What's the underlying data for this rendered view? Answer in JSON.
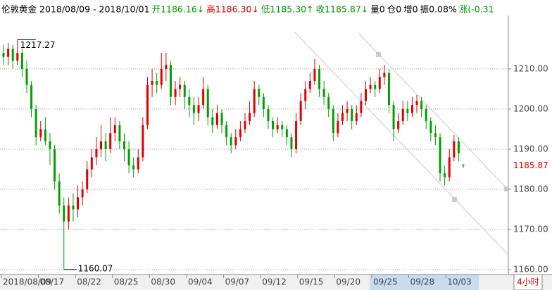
{
  "chart_data": {
    "type": "candlestick",
    "header": [
      {
        "text": "伦敦黄金",
        "color": "#000000"
      },
      {
        "text": "2018/08/09 - 2018/10/01",
        "color": "#000000"
      },
      {
        "text": "开1186.16↓",
        "color": "#009900"
      },
      {
        "text": "高1186.30↓",
        "color": "#dd0000"
      },
      {
        "text": "低1185.30↑",
        "color": "#009900"
      },
      {
        "text": "收1185.87↓",
        "color": "#009900"
      },
      {
        "text": "量0",
        "color": "#000000"
      },
      {
        "text": "仓0",
        "color": "#000000"
      },
      {
        "text": "增0",
        "color": "#000000"
      },
      {
        "text": "振0.08%",
        "color": "#000000"
      },
      {
        "text": "涨(-0.31",
        "color": "#009900"
      }
    ],
    "period": "4小时",
    "x_labels": [
      "2018/08/09",
      "08/17",
      "08/22",
      "08/25",
      "08/30",
      "09/04",
      "09/07",
      "09/12",
      "09/15",
      "09/20",
      "09/25",
      "09/28",
      "10/03"
    ],
    "up_color": "#e00000",
    "down_color": "#00a000",
    "ylim": [
      1158.8,
      1223.3
    ],
    "yticks": [
      {
        "value": 1160,
        "label": "1160.00"
      },
      {
        "value": 1170,
        "label": "1170.00"
      },
      {
        "value": 1180,
        "label": "1180.00"
      },
      {
        "value": 1190,
        "label": "1190.00"
      },
      {
        "value": 1200,
        "label": "1200.00"
      },
      {
        "value": 1210,
        "label": "1210.00"
      }
    ],
    "grid": true,
    "open": [
      1214,
      1213,
      1215,
      1212,
      1214,
      1210,
      1206,
      1200,
      1193,
      1195,
      1192,
      1190,
      1182,
      1176,
      1172,
      1176,
      1175,
      1178,
      1180,
      1185,
      1188,
      1190,
      1192,
      1190,
      1194,
      1196,
      1192,
      1190,
      1186,
      1185,
      1188,
      1196,
      1206,
      1207,
      1206,
      1210,
      1211,
      1203,
      1205,
      1206,
      1203,
      1201,
      1199,
      1201,
      1205,
      1198,
      1196,
      1199,
      1196,
      1193,
      1191,
      1193,
      1195,
      1197,
      1199,
      1205,
      1203,
      1200,
      1197,
      1195,
      1196,
      1195,
      1193,
      1190,
      1197,
      1202,
      1205,
      1207,
      1210,
      1205,
      1203,
      1200,
      1194,
      1197,
      1199,
      1200,
      1197,
      1199,
      1202,
      1205,
      1206,
      1205,
      1208,
      1209,
      1201,
      1195,
      1197,
      1200,
      1199,
      1201,
      1202,
      1200,
      1197,
      1194,
      1193,
      1184,
      1183,
      1188,
      1192,
      1186.16
    ],
    "high": [
      1216,
      1216.5,
      1216,
      1217.27,
      1215,
      1212,
      1207,
      1201,
      1197,
      1198,
      1194,
      1191,
      1184,
      1178,
      1178,
      1179,
      1181,
      1182,
      1187,
      1190,
      1193,
      1196,
      1194,
      1198,
      1198,
      1197,
      1194,
      1192,
      1188,
      1190,
      1198,
      1208,
      1210,
      1209,
      1214,
      1214,
      1212,
      1207,
      1208,
      1207,
      1205,
      1203,
      1203,
      1208,
      1206,
      1200,
      1201,
      1200,
      1197,
      1194,
      1195,
      1197,
      1199,
      1202,
      1207,
      1206,
      1204,
      1201,
      1198,
      1198,
      1197,
      1196,
      1194,
      1199,
      1204,
      1207,
      1209,
      1212.5,
      1211,
      1207,
      1204,
      1201,
      1199,
      1201,
      1202,
      1201,
      1201,
      1204,
      1207,
      1208,
      1207,
      1210,
      1211,
      1210,
      1202,
      1199,
      1202,
      1202,
      1203,
      1203.5,
      1203,
      1201,
      1198,
      1196,
      1194,
      1186,
      1190,
      1193.5,
      1193,
      1186.3
    ],
    "low": [
      1211,
      1211,
      1210,
      1211,
      1208,
      1204,
      1198,
      1191,
      1192,
      1191,
      1186,
      1180,
      1174,
      1160.07,
      1170,
      1172,
      1173,
      1176,
      1179,
      1183,
      1186,
      1188,
      1187,
      1189,
      1192,
      1190,
      1187,
      1184,
      1183,
      1184,
      1187,
      1195,
      1203,
      1204,
      1205,
      1207,
      1201,
      1201,
      1203,
      1200,
      1198,
      1196,
      1197,
      1200,
      1196,
      1194,
      1195,
      1194,
      1191,
      1189,
      1190,
      1192,
      1194,
      1196,
      1198,
      1201,
      1198,
      1195,
      1193,
      1194,
      1193,
      1191,
      1188,
      1189,
      1196,
      1200,
      1204,
      1206,
      1203,
      1201,
      1198,
      1192,
      1193,
      1196,
      1197,
      1195,
      1196,
      1198,
      1201,
      1204,
      1203,
      1204,
      1206,
      1199,
      1192,
      1194,
      1196,
      1197,
      1198,
      1199,
      1198,
      1195,
      1192,
      1191,
      1182,
      1181,
      1182,
      1187,
      1187,
      1185.3
    ],
    "close": [
      1213,
      1215,
      1212,
      1214,
      1210,
      1206,
      1200,
      1193,
      1195,
      1192,
      1190,
      1182,
      1176,
      1172,
      1176,
      1175,
      1178,
      1180,
      1185,
      1188,
      1190,
      1192,
      1190,
      1194,
      1196,
      1192,
      1190,
      1186,
      1185,
      1188,
      1196,
      1206,
      1207,
      1206,
      1210,
      1211,
      1203,
      1205,
      1206,
      1203,
      1201,
      1199,
      1201,
      1205,
      1198,
      1196,
      1199,
      1196,
      1193,
      1191,
      1193,
      1195,
      1197,
      1199,
      1205,
      1203,
      1200,
      1197,
      1195,
      1196,
      1195,
      1193,
      1190,
      1197,
      1202,
      1205,
      1207,
      1210,
      1205,
      1203,
      1200,
      1194,
      1197,
      1199,
      1200,
      1197,
      1199,
      1202,
      1205,
      1206,
      1205,
      1208,
      1209,
      1201,
      1195,
      1197,
      1200,
      1199,
      1201,
      1202,
      1200,
      1197,
      1194,
      1193,
      1184,
      1183,
      1188,
      1192,
      1189,
      1185.87
    ]
  }
}
